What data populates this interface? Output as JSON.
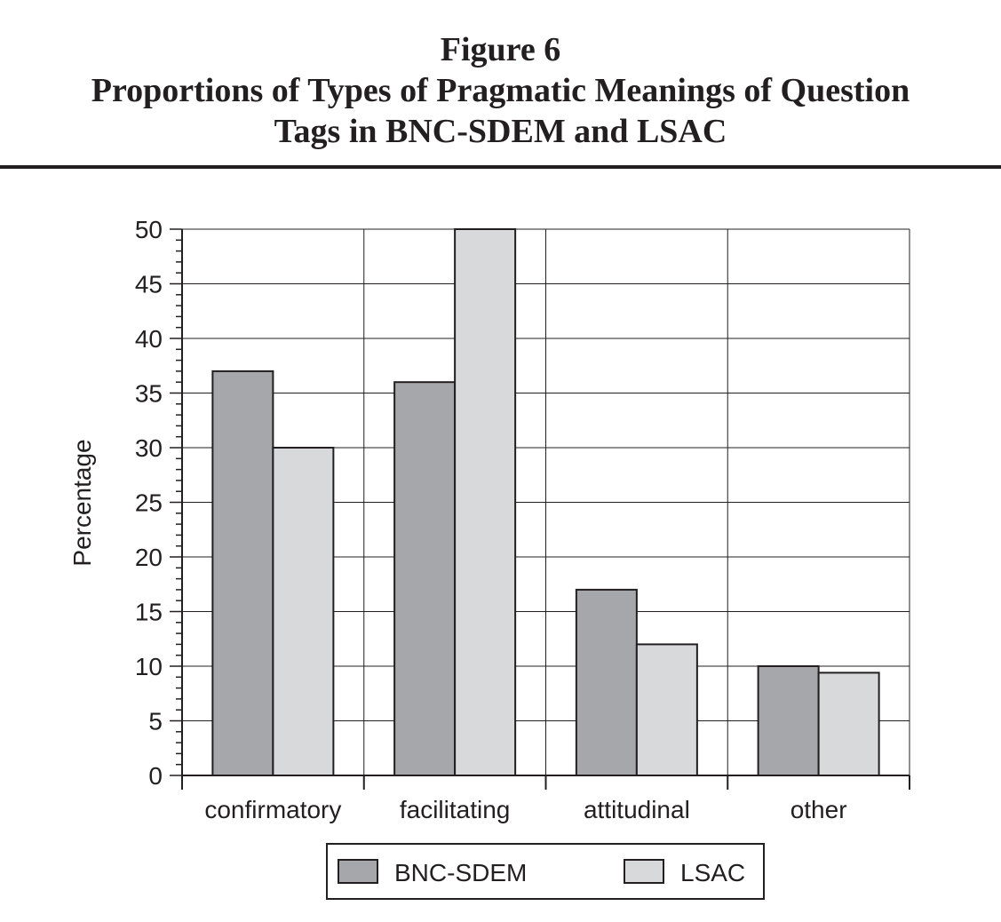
{
  "figure": {
    "label": "Figure 6",
    "caption_line_1": "Proportions of Types of Pragmatic Meanings of Question",
    "caption_line_2": "Tags in BNC-SDEM and LSAC"
  },
  "colors": {
    "bnc_sdem": "#a6a7aa",
    "lsac": "#d8d9db",
    "ink": "#231f20",
    "grid": "#231f20"
  },
  "chart_data": {
    "type": "bar",
    "title": "Proportions of Types of Pragmatic Meanings of Question Tags in BNC-SDEM and LSAC",
    "xlabel": "",
    "ylabel": "Percentage",
    "categories": [
      "confirmatory",
      "facilitating",
      "attitudinal",
      "other"
    ],
    "series": [
      {
        "name": "BNC-SDEM",
        "values": [
          37,
          36,
          17,
          10
        ],
        "color": "#a6a7aa"
      },
      {
        "name": "LSAC",
        "values": [
          30,
          50,
          12,
          9.4
        ],
        "color": "#d8d9db"
      }
    ],
    "ylim": [
      0,
      50
    ],
    "yticks": [
      0,
      5,
      10,
      15,
      20,
      25,
      30,
      35,
      40,
      45,
      50
    ],
    "grid": true,
    "legend_position": "bottom-center"
  }
}
